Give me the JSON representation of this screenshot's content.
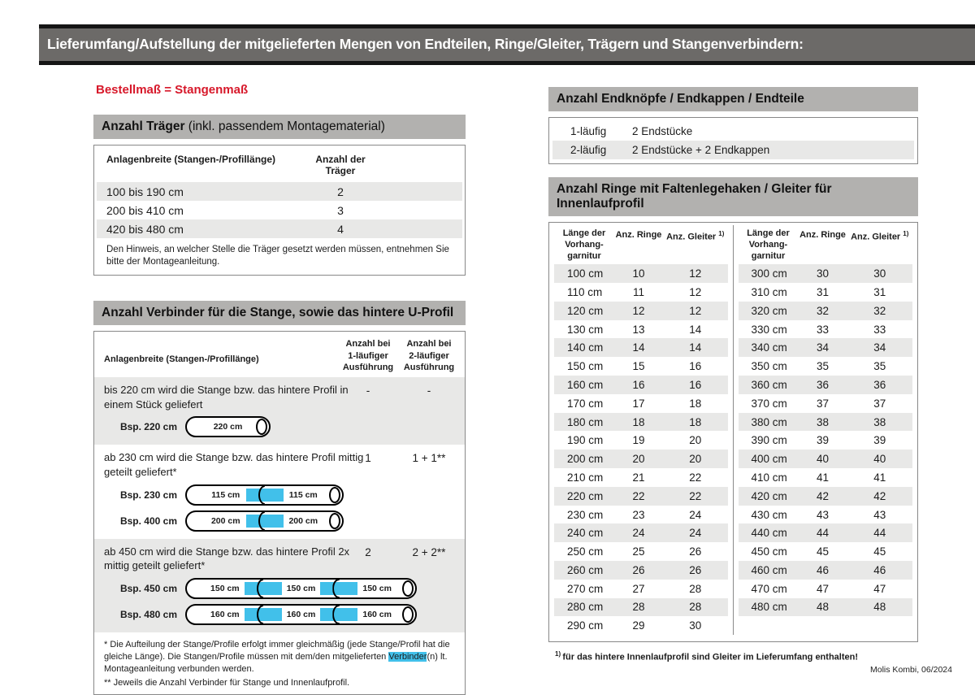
{
  "colors": {
    "accent_red": "#d7182a",
    "connector_blue": "#41c0ea",
    "banner_gray": "#6c6a68",
    "section_header_gray": "#b2b1af",
    "row_stripe_gray": "#e8e8e7"
  },
  "banner": {
    "title": "Lieferumfang/Aufstellung der mitgelieferten Mengen von Endteilen, Ringe/Gleiter, Trägern und Stangenverbindern:"
  },
  "left": {
    "bestellmass": "Bestellmaß = Stangenmaß",
    "traeger": {
      "title_bold": "Anzahl Träger",
      "title_rest": " (inkl. passendem Montagematerial)",
      "col1": "Anlagenbreite (Stangen-/Profillänge)",
      "col2": "Anzahl der Träger",
      "rows": [
        [
          "100 bis 190 cm",
          "2"
        ],
        [
          "200 bis 410 cm",
          "3"
        ],
        [
          "420 bis 480 cm",
          "4"
        ]
      ],
      "note": "Den Hinweis, an welcher Stelle die Träger gesetzt werden müssen, entnehmen Sie bitte der Montageanleitung."
    },
    "verbinder": {
      "title": "Anzahl Verbinder für die Stange, sowie das hintere U-Profil",
      "col1": "Anlagenbreite (Stangen-/Profillänge)",
      "col2": "Anzahl bei\n1-läufiger\nAusführung",
      "col3": "Anzahl bei\n2-läufiger\nAusführung",
      "blocks": [
        {
          "text": "bis 220 cm wird die Stange bzw. das hintere Profil in einem Stück geliefert",
          "qty1": "-",
          "qty2": "-",
          "examples": [
            {
              "label": "Bsp. 220 cm",
              "segments": [
                "220 cm"
              ]
            }
          ]
        },
        {
          "text": "ab 230 cm wird die Stange bzw. das hintere Profil mittig geteilt geliefert*",
          "qty1": "1",
          "qty2": "1 + 1**",
          "examples": [
            {
              "label": "Bsp. 230 cm",
              "segments": [
                "115 cm",
                "115 cm"
              ]
            },
            {
              "label": "Bsp. 400 cm",
              "segments": [
                "200 cm",
                "200 cm"
              ]
            }
          ]
        },
        {
          "text": "ab 450 cm wird die Stange bzw. das hintere Profil 2x mittig geteilt geliefert*",
          "qty1": "2",
          "qty2": "2 + 2**",
          "examples": [
            {
              "label": "Bsp. 450 cm",
              "segments": [
                "150 cm",
                "150 cm",
                "150 cm"
              ]
            },
            {
              "label": "Bsp. 480 cm",
              "segments": [
                "160 cm",
                "160 cm",
                "160 cm"
              ]
            }
          ]
        }
      ],
      "footnote1_pre": "* Die Aufteilung der Stange/Profile erfolgt immer gleichmäßig (jede Stange/Profil hat die gleiche Länge). Die Stangen/Profile müssen mit dem/den mitgelieferten ",
      "footnote1_highlight": "Verbinder",
      "footnote1_post": "(n) lt. Montageanleitung verbunden werden.",
      "footnote2": "** Jeweils die Anzahl Verbinder für Stange und Innenlaufprofil."
    }
  },
  "right": {
    "endteile": {
      "title": "Anzahl Endknöpfe / Endkappen / Endteile",
      "rows": [
        [
          "1-läufig",
          "2 Endstücke"
        ],
        [
          "2-läufig",
          "2 Endstücke + 2 Endkappen"
        ]
      ]
    },
    "ringe": {
      "title": "Anzahl Ringe mit Faltenlegehaken / Gleiter für Innenlaufprofil",
      "col_laenge": "Länge der\nVorhang-\ngarnitur",
      "col_ringe": "Anz. Ringe",
      "col_gleiter": "Anz. Gleiter ",
      "col_gleiter_sup": "1)",
      "left_rows": [
        [
          "100 cm",
          "10",
          "12"
        ],
        [
          "110 cm",
          "11",
          "12"
        ],
        [
          "120 cm",
          "12",
          "12"
        ],
        [
          "130 cm",
          "13",
          "14"
        ],
        [
          "140 cm",
          "14",
          "14"
        ],
        [
          "150 cm",
          "15",
          "16"
        ],
        [
          "160 cm",
          "16",
          "16"
        ],
        [
          "170 cm",
          "17",
          "18"
        ],
        [
          "180 cm",
          "18",
          "18"
        ],
        [
          "190 cm",
          "19",
          "20"
        ],
        [
          "200 cm",
          "20",
          "20"
        ],
        [
          "210 cm",
          "21",
          "22"
        ],
        [
          "220 cm",
          "22",
          "22"
        ],
        [
          "230 cm",
          "23",
          "24"
        ],
        [
          "240 cm",
          "24",
          "24"
        ],
        [
          "250 cm",
          "25",
          "26"
        ],
        [
          "260 cm",
          "26",
          "26"
        ],
        [
          "270 cm",
          "27",
          "28"
        ],
        [
          "280 cm",
          "28",
          "28"
        ],
        [
          "290 cm",
          "29",
          "30"
        ]
      ],
      "right_rows": [
        [
          "300 cm",
          "30",
          "30"
        ],
        [
          "310 cm",
          "31",
          "31"
        ],
        [
          "320 cm",
          "32",
          "32"
        ],
        [
          "330 cm",
          "33",
          "33"
        ],
        [
          "340 cm",
          "34",
          "34"
        ],
        [
          "350 cm",
          "35",
          "35"
        ],
        [
          "360 cm",
          "36",
          "36"
        ],
        [
          "370 cm",
          "37",
          "37"
        ],
        [
          "380 cm",
          "38",
          "38"
        ],
        [
          "390 cm",
          "39",
          "39"
        ],
        [
          "400 cm",
          "40",
          "40"
        ],
        [
          "410 cm",
          "41",
          "41"
        ],
        [
          "420 cm",
          "42",
          "42"
        ],
        [
          "430 cm",
          "43",
          "43"
        ],
        [
          "440 cm",
          "44",
          "44"
        ],
        [
          "450 cm",
          "45",
          "45"
        ],
        [
          "460 cm",
          "46",
          "46"
        ],
        [
          "470 cm",
          "47",
          "47"
        ],
        [
          "480 cm",
          "48",
          "48"
        ]
      ],
      "foot_sup": "1) ",
      "footnote": "für das hintere Innenlaufprofil sind Gleiter im Lieferumfang enthalten!"
    }
  },
  "footer": "Molis Kombi, 06/2024"
}
